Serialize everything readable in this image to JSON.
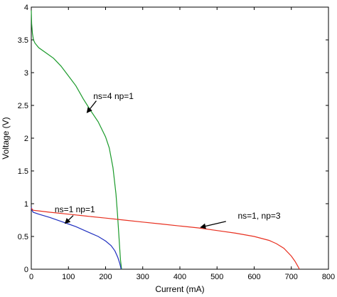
{
  "chart_data": {
    "type": "line",
    "title": "",
    "xlabel": "Current (mA)",
    "ylabel": "Voltage (V)",
    "xlim": [
      0,
      800
    ],
    "ylim": [
      0,
      4
    ],
    "xticks": [
      0,
      100,
      200,
      300,
      400,
      500,
      600,
      700,
      800
    ],
    "yticks": [
      0,
      0.5,
      1,
      1.5,
      2,
      2.5,
      3,
      3.5,
      4
    ],
    "grid": false,
    "series": [
      {
        "color": "#1a9a2a",
        "x": [
          0,
          1,
          3,
          6,
          10,
          20,
          40,
          60,
          80,
          100,
          120,
          140,
          160,
          180,
          200,
          210,
          220,
          228,
          232,
          236,
          240,
          243
        ],
        "y": [
          3.95,
          3.75,
          3.6,
          3.5,
          3.45,
          3.38,
          3.3,
          3.22,
          3.1,
          2.95,
          2.8,
          2.6,
          2.42,
          2.25,
          2.02,
          1.85,
          1.55,
          1.15,
          0.85,
          0.5,
          0.15,
          0.0
        ]
      },
      {
        "color": "#2030c0",
        "x": [
          0,
          2,
          5,
          20,
          50,
          80,
          100,
          120,
          140,
          160,
          180,
          200,
          215,
          225,
          233,
          238,
          242
        ],
        "y": [
          0.95,
          0.9,
          0.87,
          0.84,
          0.79,
          0.73,
          0.69,
          0.65,
          0.6,
          0.55,
          0.5,
          0.43,
          0.36,
          0.28,
          0.18,
          0.09,
          0.0
        ]
      },
      {
        "color": "#e83020",
        "x": [
          0,
          5,
          20,
          50,
          100,
          150,
          200,
          250,
          300,
          350,
          400,
          450,
          500,
          550,
          600,
          640,
          660,
          680,
          700,
          710,
          718,
          722
        ],
        "y": [
          0.93,
          0.9,
          0.89,
          0.87,
          0.84,
          0.81,
          0.78,
          0.75,
          0.72,
          0.69,
          0.66,
          0.63,
          0.59,
          0.55,
          0.5,
          0.44,
          0.39,
          0.32,
          0.2,
          0.12,
          0.04,
          0.0
        ]
      }
    ],
    "annotations": [
      {
        "text": "ns=4  np=1",
        "label_at": [
          167,
          2.6
        ],
        "arrow_from": [
          175,
          2.57
        ],
        "arrow_to": [
          150,
          2.39
        ]
      },
      {
        "text": "ns=1  np=1",
        "label_at": [
          63,
          0.87
        ],
        "arrow_from": [
          113,
          0.82
        ],
        "arrow_to": [
          91,
          0.7
        ]
      },
      {
        "text": "ns=1, np=3",
        "label_at": [
          556,
          0.77
        ],
        "arrow_from": [
          524,
          0.73
        ],
        "arrow_to": [
          456,
          0.64
        ]
      }
    ]
  }
}
